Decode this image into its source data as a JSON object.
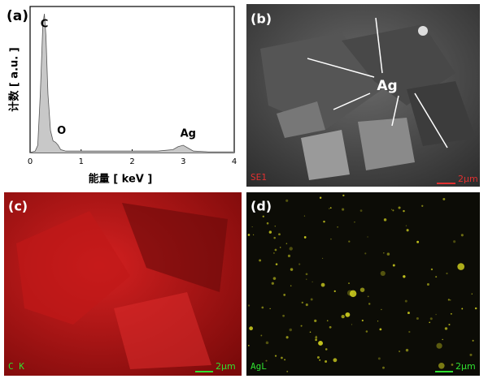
{
  "chart_data": {
    "type": "area",
    "panel_label": "(a)",
    "x_label": "能量 [ keV ]",
    "y_label": "计数 [ a.u. ]",
    "xlim": [
      0,
      4
    ],
    "xticks": [
      0,
      1,
      2,
      3,
      4
    ],
    "ylim": [
      0,
      100
    ],
    "x": [
      0,
      0.1,
      0.15,
      0.2,
      0.25,
      0.28,
      0.31,
      0.35,
      0.4,
      0.45,
      0.5,
      0.55,
      0.6,
      0.7,
      1.0,
      1.5,
      2.0,
      2.5,
      2.8,
      2.9,
      3.0,
      3.1,
      3.2,
      3.5,
      4.0
    ],
    "values": [
      0,
      1,
      5,
      40,
      88,
      95,
      80,
      40,
      15,
      8,
      7,
      5,
      2,
      1,
      1,
      1,
      1,
      1,
      2,
      4,
      5,
      3,
      1,
      0.5,
      0.5
    ],
    "color": "#c8c8c8",
    "annotations": [
      {
        "text": "C",
        "x": 0.28,
        "y": 95
      },
      {
        "text": "O",
        "x": 0.52,
        "y": 7
      },
      {
        "text": "Ag",
        "x": 3.0,
        "y": 5
      }
    ]
  },
  "images": [
    {
      "panel_label": "(b)",
      "annotation": "Ag",
      "mode_label": "SE1",
      "scale_label": "2μm"
    },
    {
      "panel_label": "(c)",
      "mode_label": "C K",
      "scale_label": "2μm"
    },
    {
      "panel_label": "(d)",
      "mode_label": "AgL",
      "scale_label": "2μm"
    }
  ]
}
